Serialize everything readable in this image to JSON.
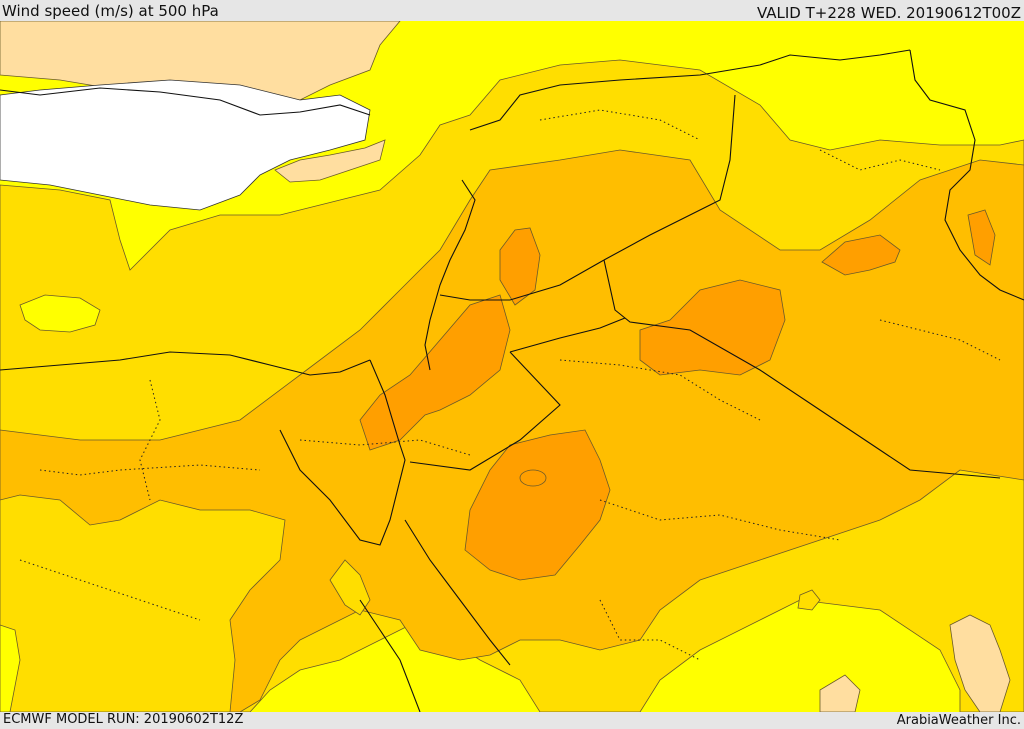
{
  "header": {
    "title": "Wind speed (m/s) at 500 hPa",
    "valid": "VALID T+228 WED. 20190612T00Z"
  },
  "footer": {
    "model_run": "ECMWF MODEL RUN: 20190602T12Z",
    "credit": "ArabiaWeather Inc."
  },
  "colors": {
    "sea": "#ffffff",
    "level_1": "#ffdea0",
    "level_2": "#ffff00",
    "level_3": "#ffde00",
    "level_4": "#ffbe00",
    "level_5": "#ff9f00",
    "border": "#111111"
  }
}
